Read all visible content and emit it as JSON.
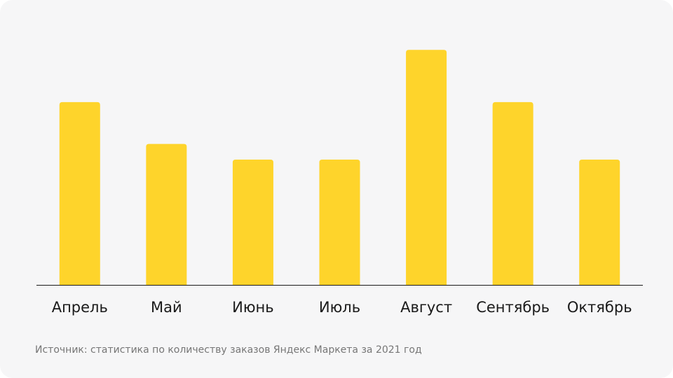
{
  "chart_data": {
    "type": "bar",
    "categories": [
      "Апрель",
      "Май",
      "Июнь",
      "Июль",
      "Август",
      "Сентябрь",
      "Октябрь"
    ],
    "values": [
      7.0,
      5.4,
      4.8,
      4.8,
      9.0,
      7.0,
      4.8
    ],
    "ylim": [
      0,
      10
    ],
    "title": "",
    "xlabel": "",
    "ylabel": "",
    "grid": false,
    "bar_color": "#fed42b",
    "axis_color": "#1a1a1a"
  },
  "footer": {
    "source": "Источник: статистика по количеству заказов Яндекс Маркета за 2021 год"
  }
}
